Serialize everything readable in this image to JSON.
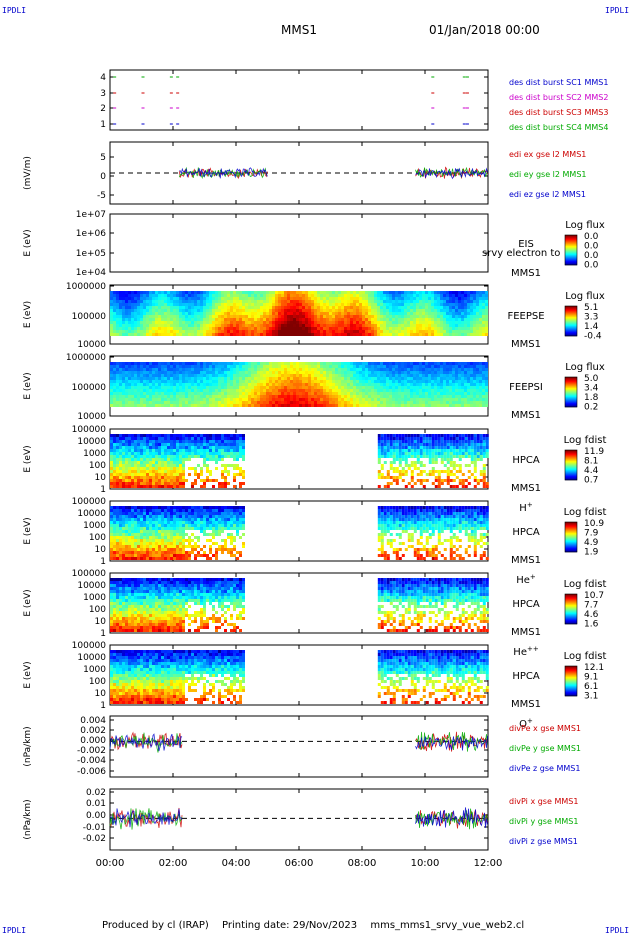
{
  "header": {
    "corner_tl": "IPDLI",
    "corner_tr": "IPDLI",
    "corner_bl": "IPDLI",
    "corner_br": "IPDLI",
    "spacecraft": "MMS1",
    "datetime": "01/Jan/2018 00:00"
  },
  "footer": {
    "produced_by": "Produced by cl (IRAP)",
    "printing_date": "Printing date: 29/Nov/2023",
    "filename": "mms_mms1_srvy_vue_web2.cl"
  },
  "chart_data": {
    "type": "line",
    "x_ticks": [
      "00:00",
      "02:00",
      "04:00",
      "06:00",
      "08:00",
      "10:00",
      "12:00"
    ],
    "x_range_hours": [
      0,
      12
    ],
    "panels": [
      {
        "id": "burst",
        "type": "scatter",
        "ylabel": "",
        "y_ticks": [
          "4",
          "3",
          "2",
          "1"
        ],
        "legend": [
          {
            "label": "des dist burst SC1 MMS1",
            "color": "#0000cc"
          },
          {
            "label": "des dist burst SC2 MMS2",
            "color": "#cc00cc"
          },
          {
            "label": "des dist burst SC3 MMS3",
            "color": "#cc0000"
          },
          {
            "label": "des dist burst SC4 MMS4",
            "color": "#00aa00"
          }
        ],
        "intervals_hours": [
          0.1,
          1.0,
          1.9,
          2.1,
          10.2,
          11.2,
          11.3
        ]
      },
      {
        "id": "edi",
        "type": "line",
        "ylabel": "(mV/m)",
        "y_ticks": [
          "5",
          "0",
          "-5"
        ],
        "y_range": [
          -8,
          8
        ],
        "legend": [
          {
            "label": "edi ex gse l2 MMS1",
            "color": "#cc0000"
          },
          {
            "label": "edi ey gse l2 MMS1",
            "color": "#00aa00"
          },
          {
            "label": "edi ez gse l2 MMS1",
            "color": "#0000cc"
          }
        ],
        "data_intervals_hours": [
          [
            2.2,
            5.0
          ],
          [
            9.7,
            12.0
          ]
        ]
      },
      {
        "id": "eis",
        "type": "heatmap",
        "ylabel": "E (eV)",
        "y_ticks": [
          "1e+07",
          "1e+06",
          "1e+05",
          "1e+04"
        ],
        "instrument": [
          "EIS",
          "MMS1"
        ],
        "overlay_text": "srvy electron to",
        "colorbar": {
          "title": "Log flux",
          "ticks": [
            "0.0",
            "0.0",
            "0.0",
            "0.0"
          ]
        },
        "empty": true
      },
      {
        "id": "feepse",
        "type": "heatmap",
        "ylabel": "E (eV)",
        "y_ticks": [
          "1000000",
          "100000",
          "10000"
        ],
        "instrument": [
          "FEEPSE",
          "MMS1"
        ],
        "colorbar": {
          "title": "Log flux",
          "ticks": [
            "5.1",
            "3.3",
            "1.4",
            "-0.4"
          ]
        },
        "data_intervals_hours": [
          [
            0,
            12
          ]
        ]
      },
      {
        "id": "feepsi",
        "type": "heatmap",
        "ylabel": "E (eV)",
        "y_ticks": [
          "1000000",
          "100000",
          "10000"
        ],
        "instrument": [
          "FEEPSI",
          "MMS1"
        ],
        "colorbar": {
          "title": "Log flux",
          "ticks": [
            "5.0",
            "3.4",
            "1.8",
            "0.2"
          ]
        },
        "data_intervals_hours": [
          [
            0,
            12
          ]
        ]
      },
      {
        "id": "hpca_h",
        "type": "heatmap",
        "ylabel": "E (eV)",
        "y_ticks": [
          "100000",
          "10000",
          "1000",
          "100",
          "10",
          "1"
        ],
        "instrument": [
          "HPCA",
          "MMS1"
        ],
        "species": "H",
        "charge": "+",
        "colorbar": {
          "title": "Log fdist",
          "ticks": [
            "11.9",
            "8.1",
            "4.4",
            "0.7"
          ]
        },
        "data_intervals_hours": [
          [
            0,
            4.2
          ],
          [
            8.5,
            12
          ]
        ]
      },
      {
        "id": "hpca_he",
        "type": "heatmap",
        "ylabel": "E (eV)",
        "y_ticks": [
          "100000",
          "10000",
          "1000",
          "100",
          "10",
          "1"
        ],
        "instrument": [
          "HPCA",
          "MMS1"
        ],
        "species": "He",
        "charge": "+",
        "colorbar": {
          "title": "Log fdist",
          "ticks": [
            "10.9",
            "7.9",
            "4.9",
            "1.9"
          ]
        },
        "data_intervals_hours": [
          [
            0,
            4.2
          ],
          [
            8.5,
            12
          ]
        ]
      },
      {
        "id": "hpca_hepp",
        "type": "heatmap",
        "ylabel": "E (eV)",
        "y_ticks": [
          "100000",
          "10000",
          "1000",
          "100",
          "10",
          "1"
        ],
        "instrument": [
          "HPCA",
          "MMS1"
        ],
        "species": "He",
        "charge": "++",
        "colorbar": {
          "title": "Log fdist",
          "ticks": [
            "10.7",
            "7.7",
            "4.6",
            "1.6"
          ]
        },
        "data_intervals_hours": [
          [
            0,
            4.2
          ],
          [
            8.5,
            12
          ]
        ]
      },
      {
        "id": "hpca_o",
        "type": "heatmap",
        "ylabel": "E (eV)",
        "y_ticks": [
          "100000",
          "10000",
          "1000",
          "100",
          "10",
          "1"
        ],
        "instrument": [
          "HPCA",
          "MMS1"
        ],
        "species": "O",
        "charge": "+",
        "colorbar": {
          "title": "Log fdist",
          "ticks": [
            "12.1",
            "9.1",
            "6.1",
            "3.1"
          ]
        },
        "data_intervals_hours": [
          [
            0,
            4.2
          ],
          [
            8.5,
            12
          ]
        ]
      },
      {
        "id": "divpe",
        "type": "line",
        "ylabel": "(nPa/km)",
        "y_ticks": [
          "0.004",
          "0.002",
          "0.000",
          "-0.002",
          "-0.004",
          "-0.006"
        ],
        "y_range": [
          -0.007,
          0.005
        ],
        "legend": [
          {
            "label": "divPe x gse MMS1",
            "color": "#cc0000"
          },
          {
            "label": "divPe y gse MMS1",
            "color": "#00aa00"
          },
          {
            "label": "divPe z gse MMS1",
            "color": "#0000cc"
          }
        ],
        "data_intervals_hours": [
          [
            0,
            2.3
          ],
          [
            9.7,
            12.0
          ]
        ]
      },
      {
        "id": "divpi",
        "type": "line",
        "ylabel": "(nPa/km)",
        "y_ticks": [
          "0.02",
          "0.01",
          "0.00",
          "-0.01",
          "-0.02"
        ],
        "y_range": [
          -0.027,
          0.025
        ],
        "legend": [
          {
            "label": "divPi x gse MMS1",
            "color": "#cc0000"
          },
          {
            "label": "divPi y gse MMS1",
            "color": "#00aa00"
          },
          {
            "label": "divPi z gse MMS1",
            "color": "#0000cc"
          }
        ],
        "data_intervals_hours": [
          [
            0,
            2.3
          ],
          [
            9.7,
            12.0
          ]
        ]
      }
    ]
  }
}
